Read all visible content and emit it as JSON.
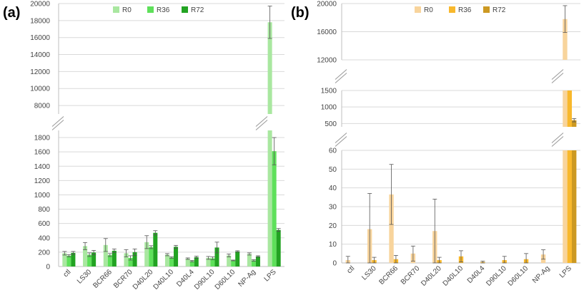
{
  "panels": [
    {
      "label": "(a)"
    },
    {
      "label": "(b)"
    }
  ],
  "chart_data": [
    {
      "type": "bar",
      "panel": "(a)",
      "categories": [
        "ctl",
        "LS30",
        "BCR66",
        "BCR70",
        "D40L20",
        "D40L10",
        "D40L4",
        "D90L10",
        "D60L10",
        "NP-Ag",
        "LPS"
      ],
      "series": [
        {
          "name": "R0",
          "color": "#a9e7a0",
          "values": [
            185,
            285,
            300,
            185,
            340,
            165,
            110,
            120,
            155,
            175,
            17800
          ],
          "errors": [
            25,
            50,
            90,
            50,
            90,
            15,
            10,
            20,
            20,
            15,
            1900
          ]
        },
        {
          "name": "R36",
          "color": "#5ee05a",
          "values": [
            150,
            165,
            160,
            120,
            270,
            125,
            75,
            115,
            85,
            85,
            1610
          ],
          "errors": [
            15,
            25,
            20,
            30,
            20,
            10,
            10,
            20,
            5,
            10,
            190
          ]
        },
        {
          "name": "R72",
          "color": "#22a322",
          "values": [
            190,
            195,
            220,
            200,
            470,
            275,
            130,
            265,
            210,
            140,
            510
          ],
          "errors": [
            20,
            30,
            25,
            45,
            30,
            20,
            15,
            75,
            10,
            10,
            20
          ]
        }
      ],
      "axes": [
        {
          "range": [
            7000,
            20000
          ],
          "ticks": [
            8000,
            10000,
            12000,
            14000,
            16000,
            18000,
            20000
          ]
        },
        {
          "range": [
            0,
            1900
          ],
          "ticks": [
            0,
            200,
            400,
            600,
            800,
            1000,
            1200,
            1400,
            1600,
            1800
          ]
        }
      ],
      "legend": "top-center",
      "grid": true
    },
    {
      "type": "bar",
      "panel": "(b)",
      "categories": [
        "ctl",
        "LS30",
        "BCR66",
        "BCR70",
        "D40L20",
        "D40L10",
        "D40L4",
        "D90L10",
        "D60L10",
        "NP-Ag",
        "LPS"
      ],
      "series": [
        {
          "name": "R0",
          "color": "#f8d49c",
          "values": [
            1.5,
            18,
            36.5,
            5,
            17,
            0,
            0,
            0,
            0,
            4.5,
            17800
          ],
          "errors": [
            2,
            19,
            16,
            4,
            17,
            0,
            0,
            0,
            0,
            2.5,
            1900
          ]
        },
        {
          "name": "R36",
          "color": "#f8b82c",
          "values": [
            0,
            1.5,
            2,
            0,
            1.5,
            3.5,
            0.5,
            1.5,
            2,
            0,
            1500
          ],
          "errors": [
            0,
            1.5,
            2,
            0,
            1.5,
            3,
            0.5,
            2,
            3,
            0,
            0
          ]
        },
        {
          "name": "R72",
          "color": "#cc9922",
          "values": [
            0,
            0,
            0,
            0,
            0,
            0,
            0,
            0,
            0,
            0,
            600
          ],
          "errors": [
            0,
            0,
            0,
            0,
            0,
            0,
            0,
            0,
            0,
            0,
            50
          ]
        }
      ],
      "axes": [
        {
          "range": [
            12000,
            20000
          ],
          "ticks": [
            12000,
            16000,
            20000
          ]
        },
        {
          "range": [
            400,
            1500
          ],
          "ticks": [
            500,
            1000,
            1500
          ]
        },
        {
          "range": [
            0,
            60
          ],
          "ticks": [
            0,
            10,
            20,
            30,
            40,
            50,
            60
          ]
        }
      ],
      "legend": "top-center",
      "grid": true
    }
  ]
}
